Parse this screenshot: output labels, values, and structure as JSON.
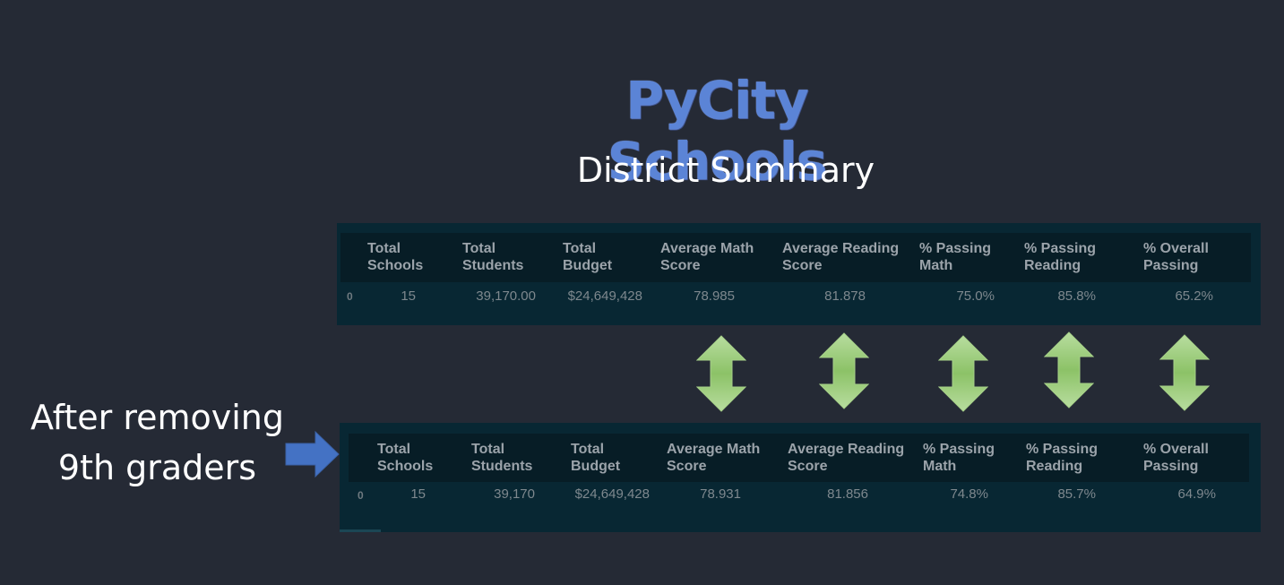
{
  "title": "PyCity Schools",
  "subtitle": "District Summary",
  "side_label": "After removing\n9th graders",
  "columns": [
    "Total\nSchools",
    "Total\nStudents",
    "Total\nBudget",
    "Average Math\nScore",
    "Average Reading\nScore",
    "% Passing\nMath",
    "% Passing\nReading",
    "% Overall\nPassing"
  ],
  "table_before": {
    "index": "0",
    "values": [
      "15",
      "39,170.00",
      "$24,649,428",
      "78.985",
      "81.878",
      "75.0%",
      "85.8%",
      "65.2%"
    ]
  },
  "table_after": {
    "index": "0",
    "values": [
      "15",
      "39,170",
      "$24,649,428",
      "78.931",
      "81.856",
      "74.8%",
      "85.7%",
      "64.9%"
    ]
  },
  "icons": {
    "compare_arrows": "double-vertical-arrow-icon",
    "pointer_arrow": "right-arrow-icon"
  },
  "colors": {
    "background": "#252a35",
    "panel": "#082733",
    "header": "#071d26",
    "title": "#5b84d6",
    "arrow_green": "#9ccc7d",
    "arrow_blue": "#4472c4"
  }
}
